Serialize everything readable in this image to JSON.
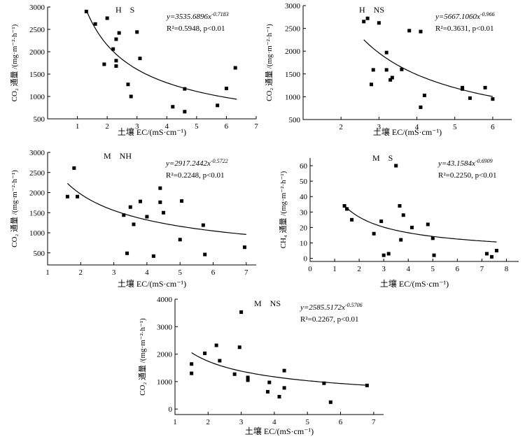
{
  "chart_data": [
    {
      "type": "scatter",
      "title": "H S",
      "xlabel": "土壤 EC/(mS·cm⁻¹)",
      "ylabel": "CO₂ 通量 /(mg·m⁻²·h⁻¹)",
      "xlim": [
        0,
        7
      ],
      "ylim": [
        500,
        3000
      ],
      "xticks": [
        1,
        2,
        3,
        4,
        5,
        6,
        7
      ],
      "yticks": [
        500,
        1000,
        1500,
        2000,
        2500,
        3000
      ],
      "equation": "y=3535.6896x^-0.7183",
      "r2": "R²=0.5948, p<0.01",
      "fit": {
        "a": 3535.6896,
        "b": -0.7183,
        "x_range": [
          1.3,
          6.35
        ]
      },
      "x": [
        1.3,
        1.6,
        1.9,
        2.0,
        2.2,
        2.3,
        2.3,
        2.3,
        2.4,
        2.7,
        2.8,
        3.0,
        3.1,
        4.2,
        4.6,
        4.6,
        5.7,
        6.0,
        6.3
      ],
      "y": [
        2900,
        2620,
        1720,
        2750,
        2060,
        1800,
        1680,
        2280,
        2420,
        1270,
        1000,
        2440,
        1850,
        770,
        1170,
        660,
        800,
        1180,
        1640
      ]
    },
    {
      "type": "scatter",
      "title": "H NS",
      "xlabel": "土壤 EC/(mS·cm⁻¹)",
      "ylabel": "CO₂ 通量 /(mg·m⁻²·h⁻¹)",
      "xlim": [
        1,
        6.5
      ],
      "ylim": [
        500,
        3000
      ],
      "xticks": [
        2,
        3,
        4,
        5,
        6
      ],
      "yticks": [
        500,
        1000,
        1500,
        2000,
        2500,
        3000
      ],
      "equation": "y=5667.1060x^-0.966",
      "r2": "R²=0.3631, p<0.01",
      "fit": {
        "a": 5667.106,
        "b": -0.966,
        "x_range": [
          2.6,
          6.0
        ]
      },
      "x": [
        2.6,
        2.7,
        2.8,
        2.85,
        3.0,
        3.2,
        3.2,
        3.3,
        3.35,
        3.6,
        3.8,
        4.1,
        4.1,
        4.2,
        5.2,
        5.2,
        5.4,
        5.8,
        6.0
      ],
      "y": [
        2650,
        2720,
        1270,
        1590,
        2620,
        1970,
        1590,
        1370,
        1420,
        1600,
        2450,
        2430,
        770,
        1030,
        1200,
        1170,
        970,
        1200,
        950
      ]
    },
    {
      "type": "scatter",
      "title": "M NH",
      "xlabel": "土壤 EC/(mS·cm⁻¹)",
      "ylabel": "CO₂ 通量 /(mg·m⁻²·h⁻¹)",
      "xlim": [
        1,
        7.3
      ],
      "ylim": [
        200,
        3000
      ],
      "xticks": [
        1,
        2,
        3,
        4,
        5,
        6,
        7
      ],
      "yticks": [
        500,
        1000,
        1500,
        2000,
        2500,
        3000
      ],
      "equation": "y=2917.2442x^-0.5722",
      "r2": "R²=0.2248, p<0.01",
      "fit": {
        "a": 2917.2442,
        "b": -0.5722,
        "x_range": [
          1.6,
          7.0
        ]
      },
      "x": [
        1.6,
        1.8,
        1.9,
        3.3,
        3.4,
        3.5,
        3.6,
        3.8,
        4.0,
        4.2,
        4.4,
        4.4,
        4.5,
        5.0,
        5.05,
        5.7,
        5.75,
        6.95
      ],
      "y": [
        1900,
        2610,
        1900,
        1440,
        490,
        1640,
        1210,
        1780,
        1400,
        420,
        2110,
        1760,
        1500,
        830,
        1790,
        1190,
        460,
        640
      ]
    },
    {
      "type": "scatter",
      "title": "M S",
      "xlabel": "土壤 EC/(mS·cm⁻¹)",
      "ylabel": "CH₄ 通量 /(mg·m⁻²·h⁻¹)",
      "xlim": [
        0,
        8.5
      ],
      "ylim": [
        -2,
        65
      ],
      "xticks": [
        0,
        1,
        2,
        3,
        4,
        5,
        6,
        7,
        8
      ],
      "yticks": [
        0,
        10,
        20,
        30,
        40,
        50,
        60
      ],
      "equation": "y=43.1584x^-0.6909",
      "r2": "R²=0.2250, p<0.01",
      "fit": {
        "a": 43.1584,
        "b": -0.6909,
        "x_range": [
          1.4,
          7.6
        ]
      },
      "x": [
        1.4,
        1.5,
        1.7,
        2.6,
        2.9,
        3.0,
        3.2,
        3.5,
        3.65,
        3.7,
        3.8,
        4.15,
        4.8,
        5.0,
        5.05,
        7.2,
        7.4,
        7.6
      ],
      "y": [
        34,
        32,
        25,
        16,
        24,
        2,
        3,
        60,
        34,
        12,
        28,
        20,
        22,
        13,
        2,
        3,
        1,
        5
      ]
    },
    {
      "type": "scatter",
      "title": "M NS",
      "xlabel": "土壤 EC/(mS·cm⁻¹)",
      "ylabel": "CO₂ 通量 /(mg·m⁻²·h⁻¹)",
      "xlim": [
        1,
        7.3
      ],
      "ylim": [
        -200,
        4000
      ],
      "xticks": [
        1,
        2,
        3,
        4,
        5,
        6,
        7
      ],
      "yticks": [
        0,
        1000,
        2000,
        3000,
        4000
      ],
      "equation": "y=2585.5172x^-0.5706",
      "r2": "R²=0.2267, p<0.01",
      "fit": {
        "a": 2585.5172,
        "b": -0.5706,
        "x_range": [
          1.5,
          6.8
        ]
      },
      "x": [
        1.5,
        1.5,
        1.9,
        2.25,
        2.35,
        2.8,
        2.95,
        3.0,
        3.2,
        3.2,
        3.8,
        3.85,
        4.15,
        4.3,
        4.3,
        5.5,
        5.7,
        6.8
      ],
      "y": [
        1640,
        1300,
        2030,
        2320,
        1760,
        1270,
        2250,
        3530,
        1150,
        1050,
        630,
        970,
        450,
        1400,
        770,
        940,
        250,
        860
      ]
    }
  ]
}
